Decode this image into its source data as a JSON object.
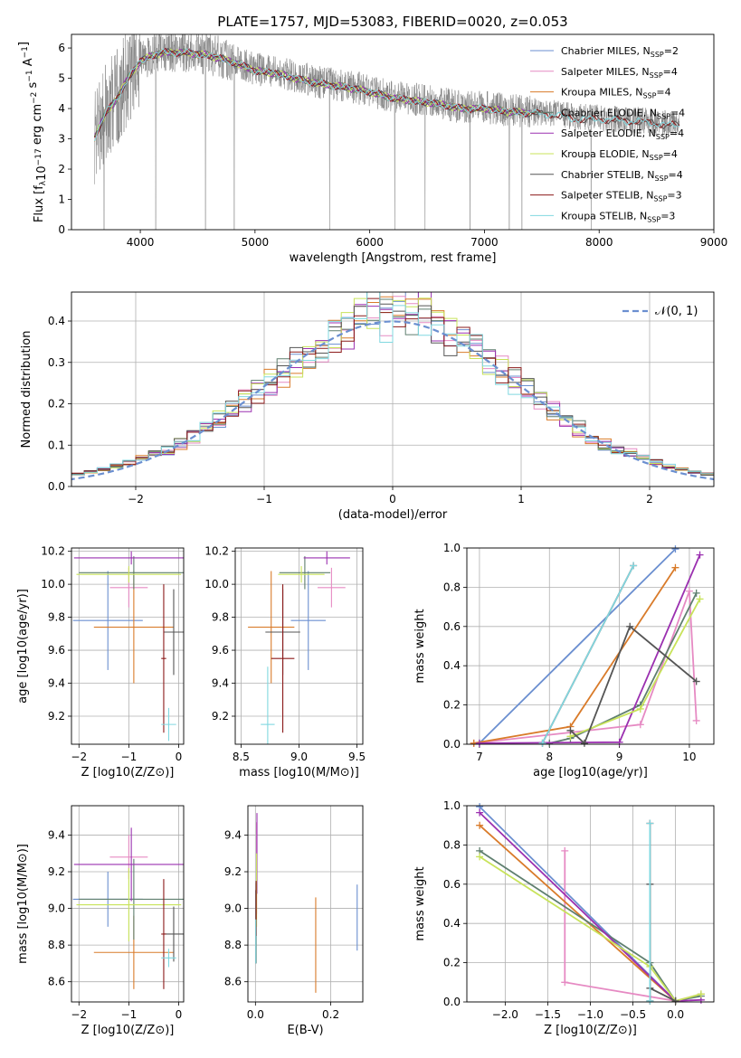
{
  "figure": {
    "title": "PLATE=1757, MJD=53083, FIBERID=0020, z=0.053"
  },
  "chart_data": [
    {
      "id": "spectrum",
      "type": "line",
      "title": "PLATE=1757, MJD=53083, FIBERID=0020, z=0.053",
      "xlabel": "wavelength [Angstrom, rest frame]",
      "ylabel": "Flux [f_λ 10^-17 erg cm^-2 s^-1 A^-1]",
      "xlim": [
        3400,
        9000
      ],
      "ylim": [
        0,
        6.45
      ],
      "xticks": [
        4000,
        5000,
        6000,
        7000,
        8000,
        9000
      ],
      "yticks": [
        0,
        1,
        2,
        3,
        4,
        5,
        6
      ],
      "grid": false,
      "legend_position": "top-right",
      "data_series": {
        "name": "data",
        "color": "#808080",
        "x_range": [
          3600,
          8700
        ]
      },
      "continuum_points": [
        [
          3600,
          3.1
        ],
        [
          3700,
          3.9
        ],
        [
          3800,
          4.4
        ],
        [
          3900,
          5.1
        ],
        [
          4000,
          5.6
        ],
        [
          4100,
          5.8
        ],
        [
          4200,
          5.9
        ],
        [
          4400,
          5.9
        ],
        [
          4600,
          5.8
        ],
        [
          4800,
          5.6
        ],
        [
          5000,
          5.3
        ],
        [
          5200,
          5.2
        ],
        [
          5400,
          5.0
        ],
        [
          5600,
          4.85
        ],
        [
          5800,
          4.75
        ],
        [
          6000,
          4.6
        ],
        [
          6200,
          4.4
        ],
        [
          6400,
          4.3
        ],
        [
          6600,
          4.2
        ],
        [
          6800,
          4.05
        ],
        [
          7000,
          4.05
        ],
        [
          7200,
          3.95
        ],
        [
          7400,
          3.9
        ],
        [
          7600,
          3.85
        ],
        [
          7800,
          3.7
        ],
        [
          8000,
          3.7
        ],
        [
          8200,
          3.65
        ],
        [
          8400,
          3.6
        ],
        [
          8600,
          3.5
        ],
        [
          8700,
          3.5
        ]
      ],
      "legend": [
        {
          "label": "Chabrier MILES, N",
          "sub": "SSP",
          "suffix": "=2",
          "color": "#6b8fd0"
        },
        {
          "label": "Salpeter MILES, N",
          "sub": "SSP",
          "suffix": "=4",
          "color": "#e68ac3"
        },
        {
          "label": "Kroupa MILES, N",
          "sub": "SSP",
          "suffix": "=4",
          "color": "#d97b2a"
        },
        {
          "label": "Chabrier ELODIE, N",
          "sub": "SSP",
          "suffix": "=4",
          "color": "#5f7f6f"
        },
        {
          "label": "Salpeter ELODIE, N",
          "sub": "SSP",
          "suffix": "=4",
          "color": "#9b30b0"
        },
        {
          "label": "Kroupa ELODIE, N",
          "sub": "SSP",
          "suffix": "=4",
          "color": "#c8e35a"
        },
        {
          "label": "Chabrier STELIB, N",
          "sub": "SSP",
          "suffix": "=4",
          "color": "#555555"
        },
        {
          "label": "Salpeter STELIB, N",
          "sub": "SSP",
          "suffix": "=3",
          "color": "#8b1a1a"
        },
        {
          "label": "Kroupa STELIB, N",
          "sub": "SSP",
          "suffix": "=3",
          "color": "#80d8e0"
        }
      ]
    },
    {
      "id": "residuals",
      "type": "line",
      "xlabel": "(data-model)/error",
      "ylabel": "Normed distribution",
      "xlim": [
        -2.5,
        2.5
      ],
      "ylim": [
        0,
        0.47
      ],
      "xticks": [
        -2,
        -1,
        0,
        1,
        2
      ],
      "yticks": [
        0.0,
        0.1,
        0.2,
        0.3,
        0.4
      ],
      "grid": true,
      "legend_position": "top-right",
      "gaussian": {
        "label": "𝒩(0, 1)",
        "color": "#6b8fd0",
        "mean": 0,
        "sigma": 1
      },
      "bin_width": 0.1
    },
    {
      "id": "age-vs-z",
      "type": "scatter",
      "xlabel": "Z [log10(Z/Z⊙)]",
      "ylabel": "age  [log10(age/yr)]",
      "xlim": [
        -2.15,
        0.1
      ],
      "ylim": [
        9.03,
        10.22
      ],
      "xticks": [
        -2,
        -1,
        0
      ],
      "yticks": [
        9.2,
        9.4,
        9.6,
        9.8,
        10.0,
        10.2
      ],
      "grid": true,
      "points": [
        {
          "x": -1.42,
          "y": 9.78,
          "xerr": 0.7,
          "yerr": 0.3,
          "color": "#6b8fd0"
        },
        {
          "x": -1.0,
          "y": 9.98,
          "xerr": 0.38,
          "yerr": 0.12,
          "color": "#e68ac3"
        },
        {
          "x": -0.9,
          "y": 9.74,
          "xerr": 0.8,
          "yerr": 0.34,
          "color": "#d97b2a"
        },
        {
          "x": -0.9,
          "y": 10.07,
          "xerr": 1.1,
          "yerr": 0.1,
          "color": "#5f7f6f"
        },
        {
          "x": -0.95,
          "y": 10.16,
          "xerr": 1.15,
          "yerr": 0.04,
          "color": "#9b30b0"
        },
        {
          "x": -1.0,
          "y": 10.06,
          "xerr": 1.05,
          "yerr": 0.05,
          "color": "#c8e35a"
        },
        {
          "x": -0.1,
          "y": 9.71,
          "xerr": 0.2,
          "yerr": 0.26,
          "color": "#555555"
        },
        {
          "x": -0.3,
          "y": 9.55,
          "xerr": 0.05,
          "yerr": 0.45,
          "color": "#8b1a1a"
        },
        {
          "x": -0.2,
          "y": 9.15,
          "xerr": 0.15,
          "yerr": 0.1,
          "color": "#80d8e0"
        }
      ]
    },
    {
      "id": "age-vs-mass",
      "type": "scatter",
      "xlabel": "mass [log10(M/M⊙)]",
      "ylabel": "",
      "xlim": [
        8.45,
        9.55
      ],
      "ylim": [
        9.03,
        10.22
      ],
      "xticks": [
        8.5,
        9.0,
        9.5
      ],
      "yticks": [
        9.2,
        9.4,
        9.6,
        9.8,
        10.0,
        10.2
      ],
      "grid": true,
      "points": [
        {
          "x": 9.08,
          "y": 9.78,
          "xerr": 0.15,
          "yerr": 0.3,
          "color": "#6b8fd0"
        },
        {
          "x": 9.28,
          "y": 9.98,
          "xerr": 0.12,
          "yerr": 0.12,
          "color": "#e68ac3"
        },
        {
          "x": 8.76,
          "y": 9.74,
          "xerr": 0.2,
          "yerr": 0.34,
          "color": "#d97b2a"
        },
        {
          "x": 9.05,
          "y": 10.07,
          "xerr": 0.22,
          "yerr": 0.1,
          "color": "#5f7f6f"
        },
        {
          "x": 9.24,
          "y": 10.16,
          "xerr": 0.2,
          "yerr": 0.04,
          "color": "#9b30b0"
        },
        {
          "x": 9.02,
          "y": 10.06,
          "xerr": 0.2,
          "yerr": 0.05,
          "color": "#c8e35a"
        },
        {
          "x": 8.86,
          "y": 9.71,
          "xerr": 0.15,
          "yerr": 0.26,
          "color": "#555555"
        },
        {
          "x": 8.86,
          "y": 9.55,
          "xerr": 0.1,
          "yerr": 0.45,
          "color": "#8b1a1a"
        },
        {
          "x": 8.73,
          "y": 9.15,
          "xerr": 0.06,
          "yerr": 0.35,
          "color": "#80d8e0"
        }
      ]
    },
    {
      "id": "weight-vs-age",
      "type": "line",
      "xlabel": "age  [log10(age/yr)]",
      "ylabel": "mass weight",
      "xlim": [
        6.82,
        10.35
      ],
      "ylim": [
        0,
        1.0
      ],
      "xticks": [
        7,
        8,
        9,
        10
      ],
      "yticks": [
        0.0,
        0.2,
        0.4,
        0.6,
        0.8,
        1.0
      ],
      "grid": true,
      "series": [
        {
          "color": "#6b8fd0",
          "points": [
            [
              7.0,
              0.005
            ],
            [
              9.8,
              0.995
            ]
          ]
        },
        {
          "color": "#e68ac3",
          "points": [
            [
              6.92,
              0.005
            ],
            [
              8.3,
              0.06
            ],
            [
              9.3,
              0.1
            ],
            [
              10.0,
              0.78
            ],
            [
              10.1,
              0.12
            ]
          ]
        },
        {
          "color": "#d97b2a",
          "points": [
            [
              6.92,
              0.005
            ],
            [
              8.3,
              0.09
            ],
            [
              9.8,
              0.9
            ]
          ]
        },
        {
          "color": "#5f7f6f",
          "points": [
            [
              8.0,
              0.005
            ],
            [
              8.3,
              0.03
            ],
            [
              9.3,
              0.2
            ],
            [
              10.1,
              0.77
            ]
          ]
        },
        {
          "color": "#9b30b0",
          "points": [
            [
              7.0,
              0.005
            ],
            [
              9.0,
              0.01
            ],
            [
              10.15,
              0.965
            ]
          ]
        },
        {
          "color": "#c8e35a",
          "points": [
            [
              8.3,
              0.04
            ],
            [
              9.3,
              0.18
            ],
            [
              10.15,
              0.74
            ]
          ]
        },
        {
          "color": "#555555",
          "points": [
            [
              8.3,
              0.07
            ],
            [
              8.5,
              0.005
            ],
            [
              9.15,
              0.6
            ],
            [
              10.1,
              0.32
            ]
          ]
        },
        {
          "color": "#8b1a1a",
          "points": [
            [
              7.9,
              0.005
            ],
            [
              9.2,
              0.91
            ]
          ]
        },
        {
          "color": "#80d8e0",
          "points": [
            [
              7.9,
              0.005
            ],
            [
              9.2,
              0.91
            ]
          ]
        }
      ]
    },
    {
      "id": "mass-vs-z",
      "type": "scatter",
      "xlabel": "Z [log10(Z/Z⊙)]",
      "ylabel": "mass [log10(M/M⊙)]",
      "xlim": [
        -2.15,
        0.1
      ],
      "ylim": [
        8.49,
        9.56
      ],
      "xticks": [
        -2,
        -1,
        0
      ],
      "yticks": [
        8.6,
        8.8,
        9.0,
        9.2,
        9.4
      ],
      "grid": true,
      "points": [
        {
          "x": -1.42,
          "y": 9.05,
          "xerr": 0.7,
          "yerr": 0.15,
          "color": "#6b8fd0"
        },
        {
          "x": -1.0,
          "y": 9.28,
          "xerr": 0.38,
          "yerr": 0.12,
          "color": "#e68ac3"
        },
        {
          "x": -0.9,
          "y": 8.76,
          "xerr": 0.8,
          "yerr": 0.2,
          "color": "#d97b2a"
        },
        {
          "x": -0.9,
          "y": 9.05,
          "xerr": 1.1,
          "yerr": 0.22,
          "color": "#5f7f6f"
        },
        {
          "x": -0.95,
          "y": 9.24,
          "xerr": 1.15,
          "yerr": 0.2,
          "color": "#9b30b0"
        },
        {
          "x": -1.0,
          "y": 9.02,
          "xerr": 1.05,
          "yerr": 0.2,
          "color": "#c8e35a"
        },
        {
          "x": -0.1,
          "y": 8.86,
          "xerr": 0.2,
          "yerr": 0.15,
          "color": "#555555"
        },
        {
          "x": -0.3,
          "y": 8.86,
          "xerr": 0.05,
          "yerr": 0.3,
          "color": "#8b1a1a"
        },
        {
          "x": -0.2,
          "y": 8.73,
          "xerr": 0.15,
          "yerr": 0.05,
          "color": "#80d8e0"
        }
      ]
    },
    {
      "id": "mass-vs-ebv",
      "type": "scatter",
      "xlabel": "E(B-V)",
      "ylabel": "",
      "xlim": [
        -0.02,
        0.285
      ],
      "ylim": [
        8.49,
        9.56
      ],
      "xticks": [
        0.0,
        0.2
      ],
      "yticks": [
        8.6,
        8.8,
        9.0,
        9.2,
        9.4
      ],
      "grid": true,
      "points": [
        {
          "x": 0.27,
          "y": 8.95,
          "yerr": 0.18,
          "color": "#6b8fd0"
        },
        {
          "x": 0.003,
          "y": 9.22,
          "yerr": 0.25,
          "color": "#e68ac3"
        },
        {
          "x": 0.16,
          "y": 8.8,
          "yerr": 0.26,
          "color": "#d97b2a"
        },
        {
          "x": 0.002,
          "y": 8.92,
          "yerr": 0.22,
          "color": "#5f7f6f"
        },
        {
          "x": 0.004,
          "y": 9.3,
          "yerr": 0.22,
          "color": "#9b30b0"
        },
        {
          "x": 0.003,
          "y": 9.1,
          "yerr": 0.2,
          "color": "#c8e35a"
        },
        {
          "x": 0.001,
          "y": 8.9,
          "yerr": 0.2,
          "color": "#555555"
        },
        {
          "x": 0.002,
          "y": 9.0,
          "yerr": 0.15,
          "color": "#8b1a1a"
        },
        {
          "x": 0.001,
          "y": 8.82,
          "yerr": 0.12,
          "color": "#80d8e0"
        }
      ]
    },
    {
      "id": "weight-vs-z",
      "type": "line",
      "xlabel": "Z [log10(Z/Z⊙)]",
      "ylabel": "mass weight",
      "xlim": [
        -2.45,
        0.45
      ],
      "ylim": [
        0,
        1.0
      ],
      "xticks": [
        -2.0,
        -1.5,
        -1.0,
        -0.5,
        0.0
      ],
      "yticks": [
        0.0,
        0.2,
        0.4,
        0.6,
        0.8,
        1.0
      ],
      "grid": true,
      "series": [
        {
          "color": "#6b8fd0",
          "points": [
            [
              -2.3,
              0.995
            ],
            [
              0.0,
              0.005
            ]
          ]
        },
        {
          "color": "#e68ac3",
          "points": [
            [
              -1.3,
              0.77
            ],
            [
              -1.3,
              0.1
            ],
            [
              0.0,
              0.005
            ],
            [
              0.3,
              0.04
            ]
          ]
        },
        {
          "color": "#d97b2a",
          "points": [
            [
              -2.3,
              0.9
            ],
            [
              0.0,
              0.005
            ]
          ]
        },
        {
          "color": "#5f7f6f",
          "points": [
            [
              -2.3,
              0.77
            ],
            [
              -0.3,
              0.2
            ],
            [
              0.0,
              0.005
            ],
            [
              0.3,
              0.03
            ]
          ]
        },
        {
          "color": "#9b30b0",
          "points": [
            [
              -2.3,
              0.965
            ],
            [
              0.0,
              0.005
            ],
            [
              0.3,
              0.01
            ]
          ]
        },
        {
          "color": "#c8e35a",
          "points": [
            [
              -2.3,
              0.74
            ],
            [
              -0.3,
              0.18
            ],
            [
              0.0,
              0.005
            ],
            [
              0.3,
              0.04
            ]
          ]
        },
        {
          "color": "#555555",
          "points": [
            [
              -0.3,
              0.6
            ],
            [
              -0.3,
              0.07
            ],
            [
              0.0,
              0.005
            ]
          ]
        },
        {
          "color": "#8b1a1a",
          "points": [
            [
              -0.3,
              0.91
            ],
            [
              -0.3,
              0.005
            ]
          ]
        },
        {
          "color": "#80d8e0",
          "points": [
            [
              -0.3,
              0.91
            ],
            [
              -0.3,
              0.005
            ]
          ]
        }
      ]
    }
  ]
}
